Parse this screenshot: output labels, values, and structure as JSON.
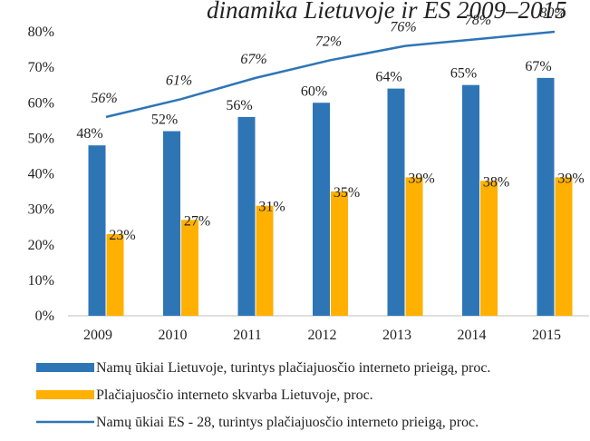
{
  "chart_data": {
    "type": "bar-line",
    "title": "dinamika Lietuvoje ir ES 2009–2015",
    "categories": [
      "2009",
      "2010",
      "2011",
      "2012",
      "2013",
      "2014",
      "2015"
    ],
    "series": [
      {
        "name": "Namų ūkiai Lietuvoje, turintys plačiajuosčio interneto prieigą, proc.",
        "type": "bar",
        "color": "#2e75b6",
        "values": [
          48,
          52,
          56,
          60,
          64,
          65,
          67
        ],
        "value_labels": [
          "48%",
          "52%",
          "56%",
          "60%",
          "64%",
          "65%",
          "67%"
        ]
      },
      {
        "name": "Plačiajuosčio interneto skvarba Lietuvoje, proc.",
        "type": "bar",
        "color": "#ffb000",
        "values": [
          23,
          27,
          31,
          35,
          39,
          38,
          39
        ],
        "value_labels": [
          "23%",
          "27%",
          "31%",
          "35%",
          "39%",
          "38%",
          "39%"
        ]
      },
      {
        "name": "Namų ūkiai ES - 28, turintys plačiajuosčio interneto prieigą, proc.",
        "type": "line",
        "color": "#2e75b6",
        "values": [
          56,
          61,
          67,
          72,
          76,
          78,
          80
        ],
        "value_labels": [
          "56%",
          "61%",
          "67%",
          "72%",
          "76%",
          "78%",
          "80%"
        ]
      }
    ],
    "ylim": [
      0,
      80
    ],
    "yticks": [
      {
        "value": 0,
        "label": "0%"
      },
      {
        "value": 10,
        "label": "10%"
      },
      {
        "value": 20,
        "label": "20%"
      },
      {
        "value": 30,
        "label": "30%"
      },
      {
        "value": 40,
        "label": "40%"
      },
      {
        "value": 50,
        "label": "50%"
      },
      {
        "value": 60,
        "label": "60%"
      },
      {
        "value": 70,
        "label": "70%"
      },
      {
        "value": 80,
        "label": "80%"
      }
    ],
    "legend": "bottom"
  }
}
